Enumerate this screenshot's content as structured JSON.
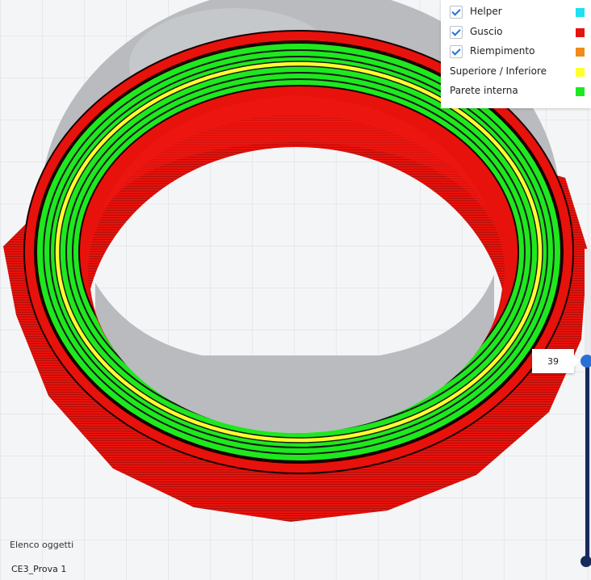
{
  "legend": {
    "items": [
      {
        "label": "Helper",
        "checkbox": true,
        "color": "#1ee0f0"
      },
      {
        "label": "Guscio",
        "checkbox": true,
        "color": "#e8120c"
      },
      {
        "label": "Riempimento",
        "checkbox": true,
        "color": "#f08a1a"
      },
      {
        "label": "Superiore / Inferiore",
        "checkbox": false,
        "color": "#ffff30"
      },
      {
        "label": "Parete interna",
        "checkbox": false,
        "color": "#1ee81e"
      }
    ]
  },
  "bottom_panel": {
    "objects_label": "Elenco oggetti",
    "project_name": "CE3_Prova 1"
  },
  "layer_slider": {
    "current_layer": "39",
    "position_fraction": 0.36
  },
  "colors": {
    "shell": "#e8120c",
    "inner_wall": "#1ee81e",
    "top_bottom": "#ffff30",
    "shadow": "#b9bbbe",
    "build_plate": "#f4f5f6"
  }
}
